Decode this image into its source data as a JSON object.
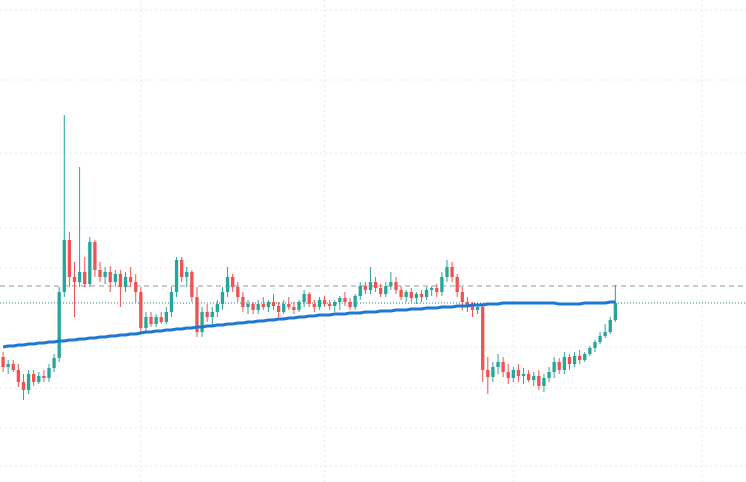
{
  "chart_data": {
    "type": "candlestick",
    "xlim": [
      -0.6,
      145.6
    ],
    "xticks": [
      27,
      63,
      100,
      137
    ],
    "ylim": [
      0,
      482
    ],
    "yticks": [
      16,
      54,
      94,
      135,
      214,
      254,
      329,
      402,
      472
    ],
    "grid": true,
    "up_color": "#26a69a",
    "down_color": "#ef5350",
    "open": [
      125,
      115,
      118,
      112,
      100,
      92,
      108,
      100,
      106,
      104,
      114,
      124,
      190,
      242,
      205,
      200,
      210,
      198,
      240,
      212,
      205,
      210,
      200,
      208,
      195,
      205,
      200,
      190,
      154,
      165,
      158,
      165,
      160,
      170,
      190,
      222,
      205,
      210,
      185,
      150,
      170,
      165,
      170,
      178,
      190,
      205,
      195,
      185,
      175,
      178,
      172,
      178,
      175,
      180,
      176,
      170,
      178,
      175,
      172,
      180,
      188,
      178,
      175,
      182,
      178,
      176,
      180,
      184,
      180,
      175,
      186,
      196,
      192,
      200,
      194,
      188,
      196,
      200,
      192,
      185,
      190,
      184,
      188,
      185,
      192,
      194,
      190,
      205,
      215,
      205,
      190,
      180,
      176,
      172,
      175,
      112,
      105,
      115,
      120,
      110,
      104,
      112,
      106,
      108,
      102,
      106,
      96,
      104,
      110,
      120,
      112,
      125,
      118,
      126,
      122,
      128,
      134,
      140,
      146,
      150,
      162
    ],
    "high": [
      130,
      122,
      122,
      118,
      108,
      112,
      112,
      110,
      112,
      118,
      128,
      195,
      367,
      250,
      220,
      315,
      225,
      245,
      242,
      220,
      215,
      216,
      212,
      212,
      210,
      215,
      208,
      195,
      170,
      170,
      168,
      170,
      175,
      195,
      225,
      225,
      215,
      212,
      195,
      175,
      178,
      175,
      182,
      195,
      215,
      208,
      200,
      190,
      182,
      180,
      182,
      185,
      182,
      188,
      180,
      182,
      185,
      180,
      182,
      192,
      190,
      182,
      185,
      186,
      182,
      182,
      186,
      190,
      184,
      188,
      200,
      200,
      215,
      205,
      198,
      200,
      210,
      205,
      196,
      192,
      194,
      190,
      192,
      195,
      196,
      198,
      210,
      222,
      220,
      208,
      195,
      185,
      180,
      178,
      176,
      125,
      120,
      128,
      125,
      118,
      115,
      118,
      114,
      112,
      110,
      112,
      108,
      115,
      125,
      124,
      130,
      128,
      130,
      132,
      130,
      136,
      142,
      150,
      158,
      165,
      197
    ],
    "low": [
      110,
      108,
      110,
      95,
      82,
      88,
      96,
      98,
      100,
      100,
      110,
      120,
      185,
      195,
      165,
      195,
      195,
      195,
      205,
      200,
      198,
      190,
      195,
      175,
      190,
      195,
      180,
      150,
      150,
      155,
      155,
      158,
      158,
      165,
      185,
      200,
      195,
      180,
      145,
      145,
      160,
      155,
      165,
      172,
      185,
      190,
      180,
      170,
      168,
      168,
      168,
      172,
      170,
      172,
      165,
      168,
      172,
      168,
      170,
      175,
      175,
      170,
      172,
      175,
      172,
      170,
      172,
      176,
      172,
      172,
      182,
      188,
      188,
      190,
      185,
      185,
      192,
      188,
      182,
      180,
      180,
      178,
      180,
      182,
      186,
      185,
      186,
      200,
      200,
      185,
      172,
      170,
      165,
      168,
      100,
      88,
      100,
      108,
      105,
      98,
      100,
      100,
      98,
      100,
      96,
      92,
      90,
      100,
      104,
      108,
      108,
      112,
      115,
      118,
      120,
      126,
      130,
      138,
      144,
      148,
      160
    ],
    "close": [
      115,
      118,
      112,
      100,
      92,
      108,
      100,
      106,
      104,
      114,
      124,
      190,
      242,
      205,
      200,
      210,
      198,
      240,
      212,
      205,
      210,
      200,
      208,
      195,
      205,
      200,
      190,
      154,
      165,
      158,
      165,
      160,
      170,
      190,
      222,
      205,
      210,
      185,
      150,
      170,
      165,
      170,
      178,
      190,
      205,
      195,
      185,
      175,
      178,
      172,
      178,
      175,
      180,
      176,
      170,
      178,
      175,
      172,
      180,
      188,
      178,
      175,
      182,
      178,
      176,
      180,
      184,
      180,
      175,
      186,
      196,
      192,
      200,
      194,
      188,
      196,
      200,
      192,
      185,
      190,
      184,
      188,
      185,
      192,
      194,
      190,
      205,
      215,
      205,
      190,
      180,
      176,
      172,
      175,
      112,
      105,
      115,
      120,
      110,
      104,
      112,
      106,
      108,
      102,
      106,
      96,
      104,
      110,
      120,
      112,
      125,
      118,
      126,
      122,
      128,
      134,
      140,
      146,
      150,
      162,
      179
    ],
    "ma": {
      "color": "#1e78d2",
      "values": [
        135,
        136,
        136,
        137,
        137,
        138,
        138,
        139,
        139,
        140,
        140,
        141,
        141,
        142,
        142,
        143,
        143,
        144,
        144,
        145,
        145,
        146,
        146,
        147,
        147,
        148,
        148,
        149,
        150,
        150,
        151,
        151,
        152,
        152,
        153,
        153,
        154,
        154,
        155,
        155,
        156,
        156,
        157,
        157,
        158,
        158,
        159,
        159,
        160,
        160,
        161,
        161,
        162,
        162,
        163,
        163,
        164,
        164,
        165,
        165,
        166,
        166,
        167,
        167,
        167,
        168,
        168,
        168,
        169,
        169,
        169,
        170,
        170,
        170,
        171,
        171,
        171,
        172,
        172,
        172,
        173,
        173,
        173,
        174,
        174,
        174,
        175,
        175,
        175,
        176,
        176,
        176,
        177,
        177,
        177,
        178,
        178,
        178,
        179,
        179,
        179,
        179,
        179,
        179,
        179,
        179,
        179,
        179,
        179,
        178,
        178,
        178,
        178,
        178,
        179,
        179,
        179,
        179,
        179,
        180,
        180
      ]
    },
    "price_lines": [
      {
        "value": 196,
        "style": "dashed",
        "color": "#9598a1"
      },
      {
        "value": 179,
        "style": "dotted",
        "color": "#1c7f86"
      }
    ]
  }
}
